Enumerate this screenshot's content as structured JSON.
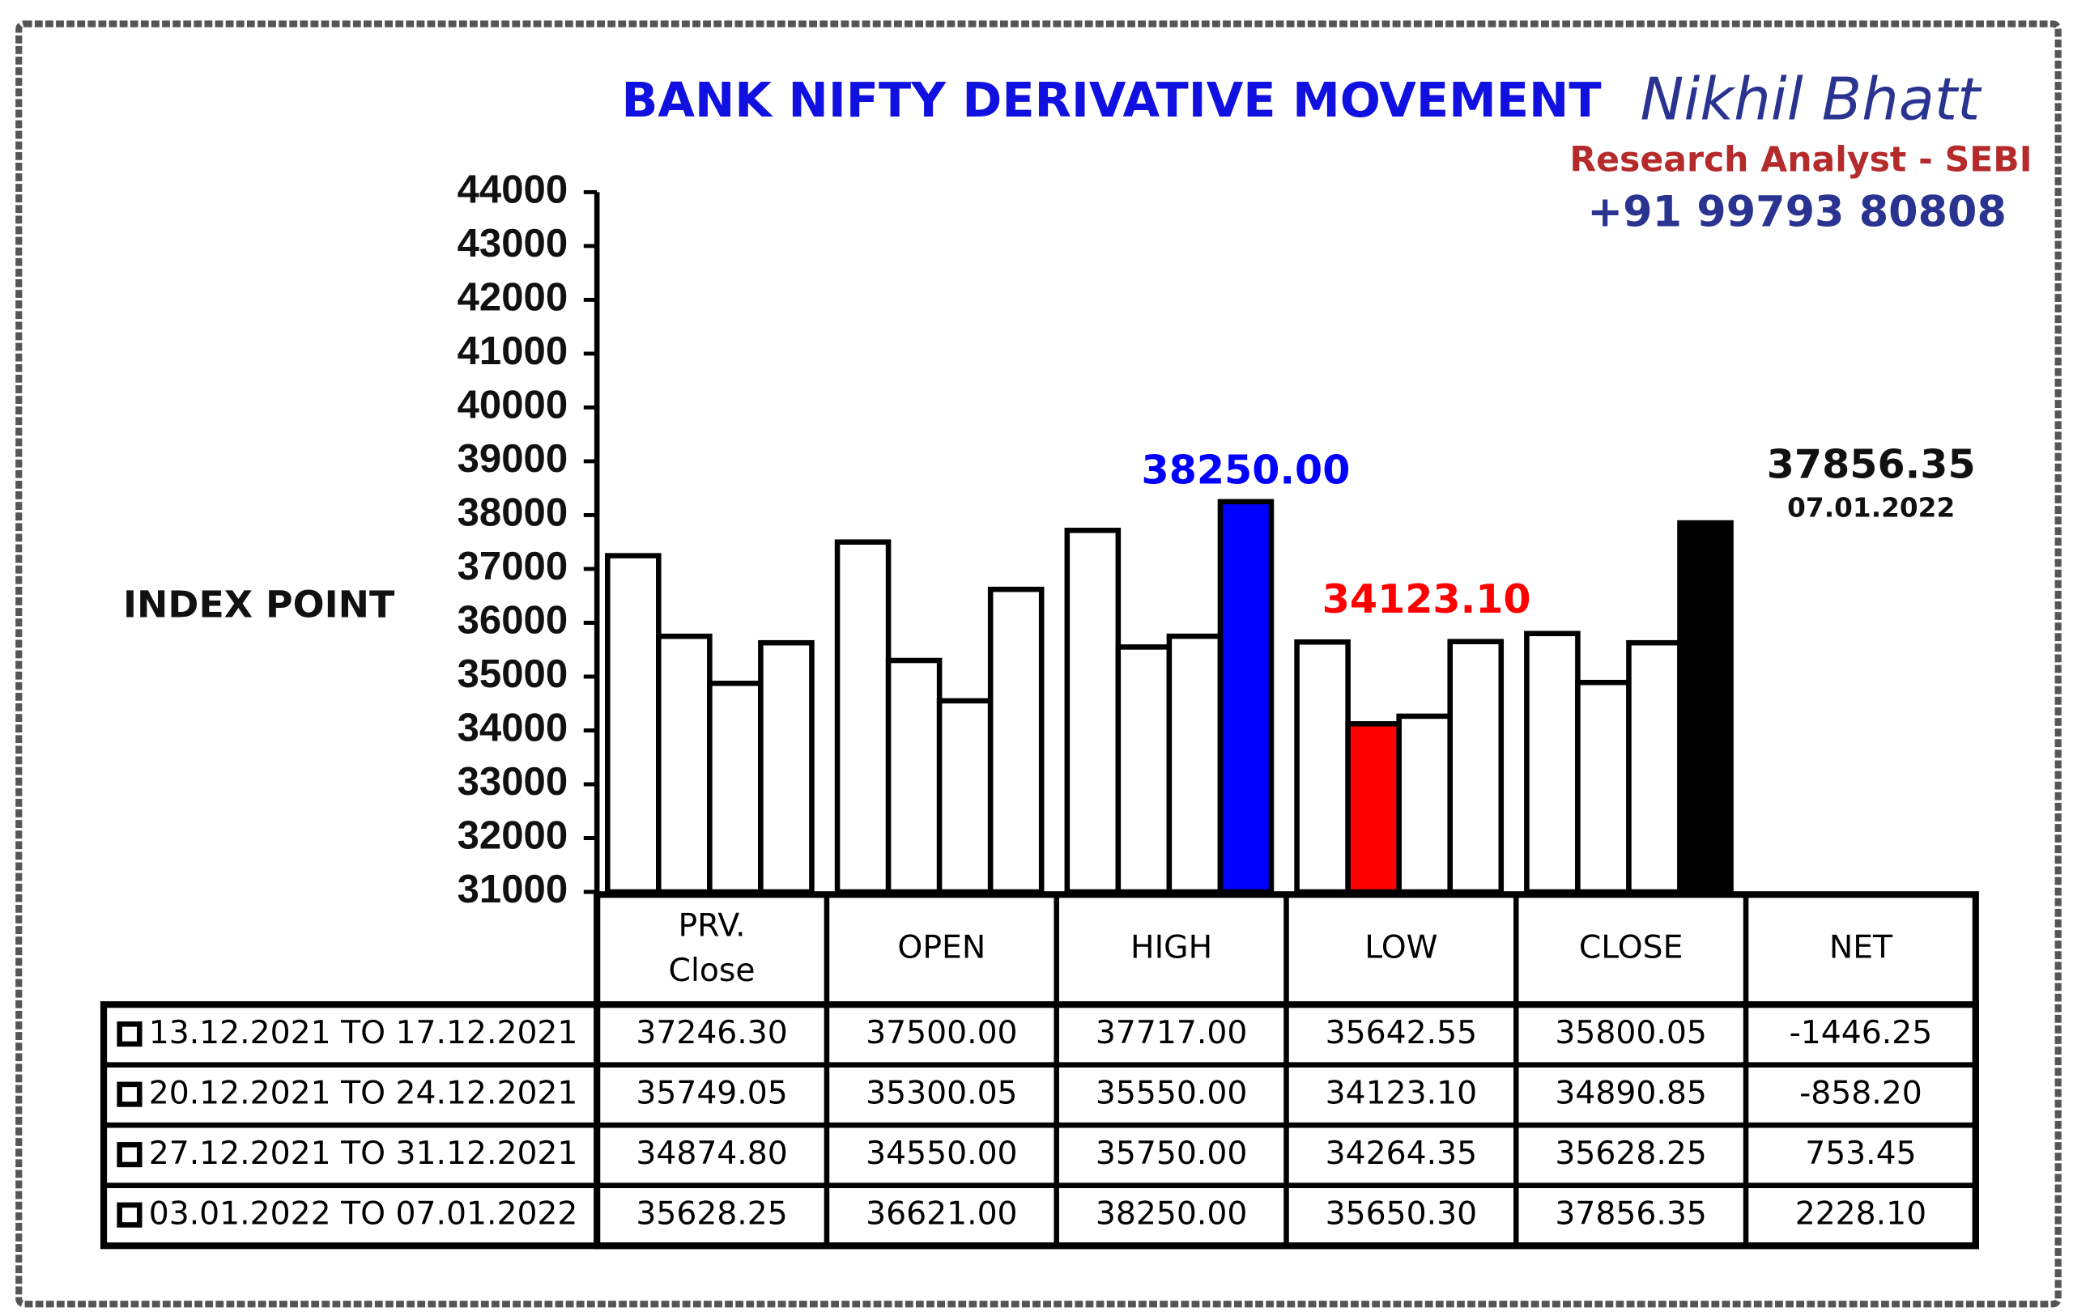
{
  "chart_data": {
    "type": "bar",
    "title": "BANK NIFTY DERIVATIVE MOVEMENT",
    "author": "Nikhil Bhatt",
    "author_role": "Research Analyst - SEBI",
    "phone": "+91 99793 80808",
    "y_label": "INDEX POINT",
    "categories": [
      "PRV.\nClose",
      "OPEN",
      "HIGH",
      "LOW",
      "CLOSE"
    ],
    "net_header": "NET",
    "ylim": [
      31000,
      44000
    ],
    "yticks": [
      31000,
      32000,
      33000,
      34000,
      35000,
      36000,
      37000,
      38000,
      39000,
      40000,
      41000,
      42000,
      43000,
      44000
    ],
    "series": [
      {
        "name": "13.12.2021 TO 17.12.2021",
        "color": "#ffffff",
        "values": [
          37246.3,
          37500,
          37717,
          35642.55,
          35800.05
        ],
        "value_labels": [
          "37246.30",
          "37500.00",
          "37717.00",
          "35642.55",
          "35800.05"
        ],
        "net": -1446.25,
        "net_label": "-1446.25"
      },
      {
        "name": "20.12.2021 TO 24.12.2021",
        "color": "#ffffff",
        "values": [
          35749.05,
          35300.05,
          35550,
          34123.1,
          34890.85
        ],
        "value_labels": [
          "35749.05",
          "35300.05",
          "35550.00",
          "34123.10",
          "34890.85"
        ],
        "net": -858.2,
        "net_label": "-858.20"
      },
      {
        "name": "27.12.2021 TO 31.12.2021",
        "color": "#ffffff",
        "values": [
          34874.8,
          34550,
          35750,
          34264.35,
          35628.25
        ],
        "value_labels": [
          "34874.80",
          "34550.00",
          "35750.00",
          "34264.35",
          "35628.25"
        ],
        "net": 753.45,
        "net_label": "753.45"
      },
      {
        "name": "03.01.2022 TO 07.01.2022",
        "color": "#ffffff",
        "values": [
          35628.25,
          36621,
          38250,
          35650.3,
          37856.35
        ],
        "value_labels": [
          "35628.25",
          "36621.00",
          "38250.00",
          "35650.30",
          "37856.35"
        ],
        "net": 2228.1,
        "net_label": "2228.10"
      }
    ],
    "highlights": [
      {
        "series": 3,
        "category": 2,
        "color": "#0000ff",
        "label": "38250.00"
      },
      {
        "series": 1,
        "category": 3,
        "color": "#ff0000",
        "label": "34123.10"
      },
      {
        "series": 3,
        "category": 4,
        "color": "#000000",
        "label": "37856.35",
        "date": "07.01.2022"
      }
    ]
  }
}
